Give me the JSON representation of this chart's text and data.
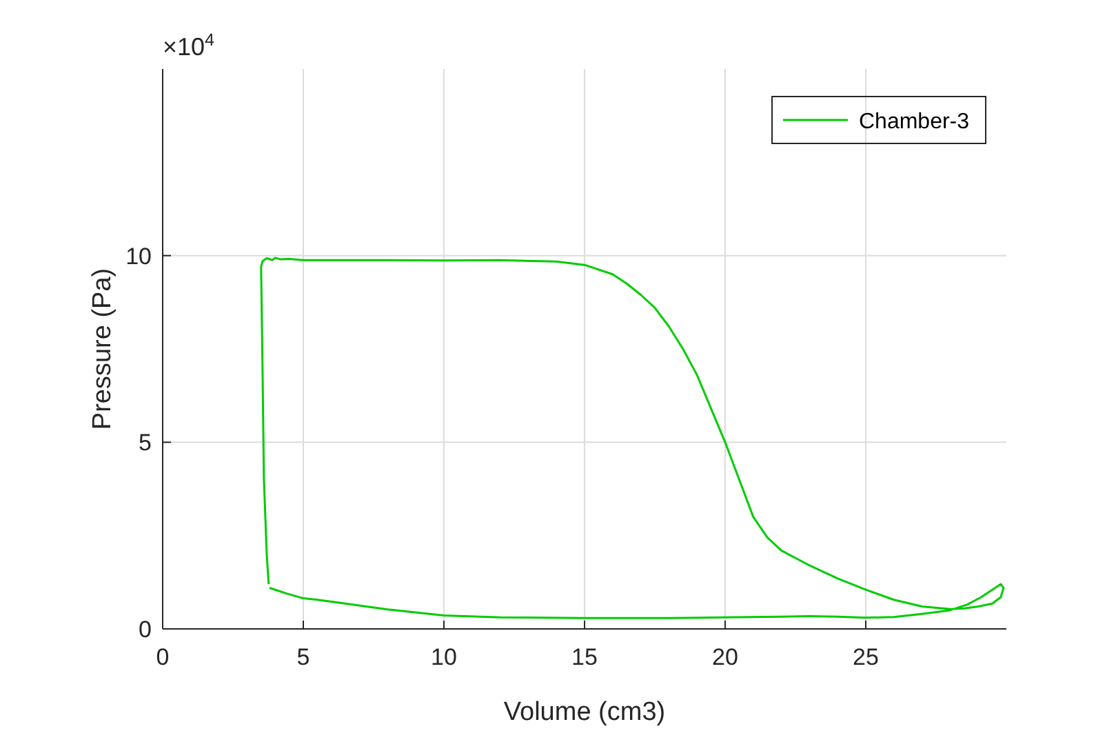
{
  "chart_data": {
    "type": "line",
    "xlabel": "Volume (cm3)",
    "ylabel": "Pressure (Pa)",
    "annotations": [
      "×10$^{4}$"
    ],
    "xlim": [
      0,
      30
    ],
    "xticks": [
      0,
      5,
      10,
      15,
      20,
      25
    ],
    "ylim": [
      0,
      15
    ],
    "yticks": [
      0,
      5,
      10
    ],
    "grid": true,
    "legend": "top right",
    "marker": "none",
    "line_style": "solid",
    "series": [
      {
        "name": "Chamber-3",
        "color": "#00cc00",
        "x": [
          3.8,
          4.4,
          5,
          5.5,
          6.5,
          8,
          10,
          12,
          15,
          18,
          20,
          22,
          23,
          24,
          25,
          26,
          27,
          28,
          28.6,
          29.1,
          29.5,
          29.8,
          29.9,
          29.8,
          29.5,
          29,
          28.5,
          28,
          27,
          26,
          25,
          24,
          23,
          22,
          21.5,
          21,
          20.5,
          20,
          19.5,
          19,
          18.5,
          18,
          17.5,
          17,
          16.5,
          16,
          15,
          14,
          12,
          10,
          8,
          5,
          4.5,
          4.2,
          4,
          3.9,
          3.7,
          3.55,
          3.5,
          3.55,
          3.6,
          3.7,
          3.77
        ],
        "values": [
          1.1,
          0.95,
          0.82,
          0.78,
          0.68,
          0.52,
          0.36,
          0.31,
          0.29,
          0.29,
          0.31,
          0.33,
          0.34,
          0.33,
          0.3,
          0.32,
          0.4,
          0.5,
          0.65,
          0.85,
          1.05,
          1.2,
          1.1,
          0.85,
          0.68,
          0.6,
          0.55,
          0.53,
          0.6,
          0.78,
          1.05,
          1.35,
          1.7,
          2.1,
          2.45,
          3,
          4,
          5,
          5.9,
          6.8,
          7.5,
          8.1,
          8.6,
          8.95,
          9.25,
          9.5,
          9.75,
          9.84,
          9.88,
          9.87,
          9.88,
          9.88,
          9.91,
          9.9,
          9.94,
          9.88,
          9.93,
          9.85,
          9.7,
          7,
          4,
          2,
          1.2
        ]
      }
    ]
  }
}
